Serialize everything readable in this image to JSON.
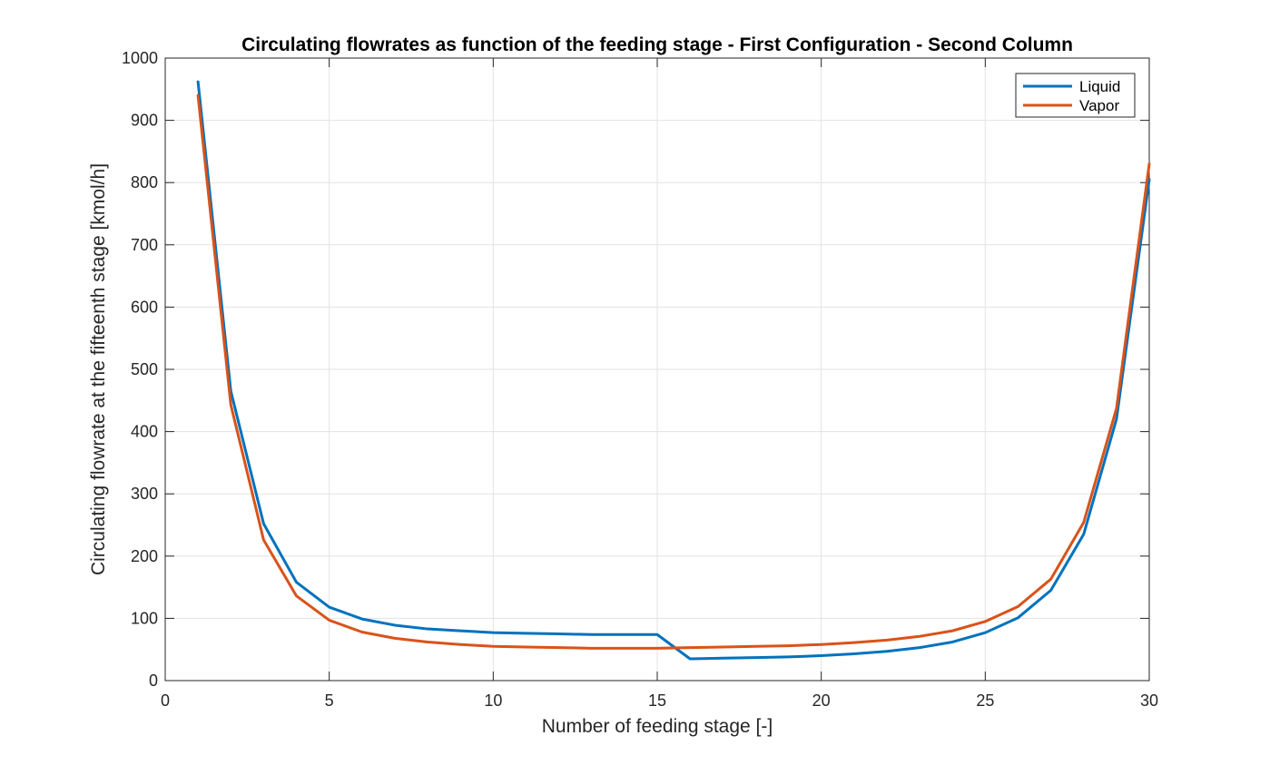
{
  "chart_data": {
    "type": "line",
    "title": "Circulating flowrates as function of the feeding stage - First Configuration - Second Column",
    "xlabel": "Number of feeding stage [-]",
    "ylabel": "Circulating flowrate at the fifteenth stage [kmol/h]",
    "xlim": [
      0,
      30
    ],
    "ylim": [
      0,
      1000
    ],
    "xticks": [
      0,
      5,
      10,
      15,
      20,
      25,
      30
    ],
    "yticks": [
      0,
      100,
      200,
      300,
      400,
      500,
      600,
      700,
      800,
      900,
      1000
    ],
    "xtick_labels": [
      "0",
      "5",
      "10",
      "15",
      "20",
      "25",
      "30"
    ],
    "ytick_labels": [
      "0",
      "100",
      "200",
      "300",
      "400",
      "500",
      "600",
      "700",
      "800",
      "900",
      "1000"
    ],
    "grid": true,
    "legend_position": "top-right",
    "x": [
      1,
      2,
      3,
      4,
      5,
      6,
      7,
      8,
      9,
      10,
      11,
      12,
      13,
      14,
      15,
      16,
      17,
      18,
      19,
      20,
      21,
      22,
      23,
      24,
      25,
      26,
      27,
      28,
      29,
      30
    ],
    "series": [
      {
        "name": "Liquid",
        "color": "#0072BD",
        "values": [
          962,
          465,
          252,
          158,
          118,
          99,
          89,
          83,
          80,
          77,
          76,
          75,
          74,
          74,
          74,
          35,
          36,
          37,
          38,
          40,
          43,
          47,
          53,
          62,
          77,
          101,
          145,
          235,
          420,
          805
        ]
      },
      {
        "name": "Vapor",
        "color": "#D95319",
        "values": [
          940,
          443,
          226,
          136,
          97,
          78,
          68,
          62,
          58,
          55,
          54,
          53,
          52,
          52,
          52,
          53,
          54,
          55,
          56,
          58,
          61,
          65,
          71,
          80,
          95,
          119,
          163,
          254,
          437,
          830
        ]
      }
    ]
  }
}
